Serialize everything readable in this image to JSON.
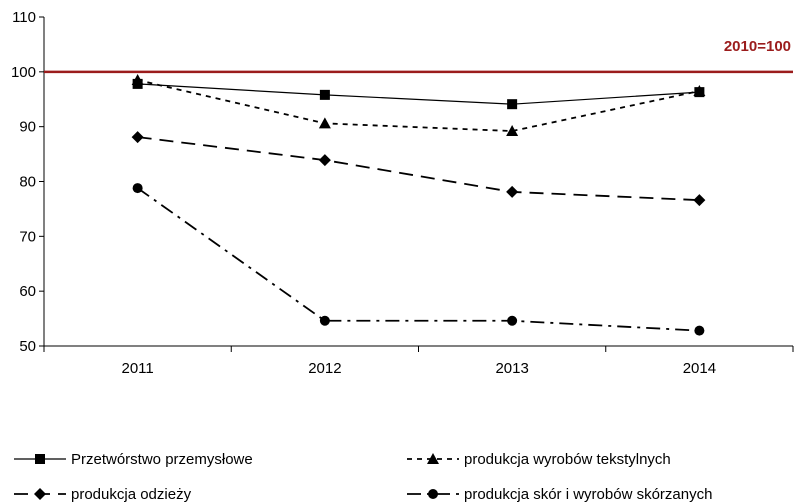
{
  "chart_data": {
    "type": "line",
    "categories": [
      "2011",
      "2012",
      "2013",
      "2014"
    ],
    "ylim": [
      50,
      110
    ],
    "yticks": [
      50,
      60,
      70,
      80,
      90,
      100,
      110
    ],
    "grid": false,
    "legend_position": "bottom",
    "reference_line": {
      "value": 100,
      "label": "2010=100",
      "color": "#9b1c1c"
    },
    "series": [
      {
        "name": "Przetwórstwo przemysłowe",
        "values": [
          97.8,
          95.8,
          94.1,
          96.3
        ],
        "marker": "square",
        "dash": "solid"
      },
      {
        "name": "produkcja wyrobów tekstylnych",
        "values": [
          98.5,
          90.6,
          89.2,
          96.5
        ],
        "marker": "triangle",
        "dash": "short-dash"
      },
      {
        "name": "produkcja odzieży",
        "values": [
          88.1,
          83.9,
          78.1,
          76.6
        ],
        "marker": "diamond",
        "dash": "long-dash"
      },
      {
        "name": "produkcja skór i wyrobów skórzanych",
        "values": [
          78.8,
          54.6,
          54.6,
          52.8
        ],
        "marker": "circle",
        "dash": "dash-dot"
      }
    ]
  }
}
